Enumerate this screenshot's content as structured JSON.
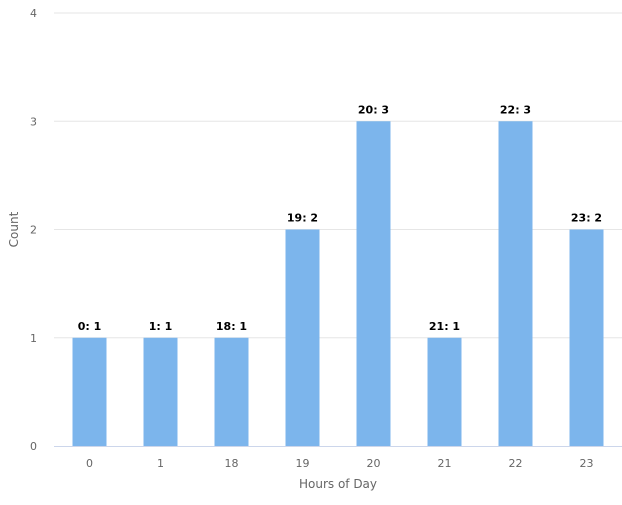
{
  "chart_data": {
    "type": "bar",
    "title": "",
    "xlabel": "Hours of Day",
    "ylabel": "Count",
    "categories": [
      "0",
      "1",
      "18",
      "19",
      "20",
      "21",
      "22",
      "23"
    ],
    "values": [
      1,
      1,
      1,
      2,
      3,
      1,
      3,
      2
    ],
    "data_labels": [
      "0: 1",
      "1: 1",
      "18: 1",
      "19: 2",
      "20: 3",
      "21: 1",
      "22: 3",
      "23: 2"
    ],
    "ylim": [
      0,
      4
    ],
    "yticks": [
      "0",
      "1",
      "2",
      "3",
      "4"
    ],
    "grid": true,
    "legend": "none",
    "bar_color": "#7cb5ec"
  }
}
